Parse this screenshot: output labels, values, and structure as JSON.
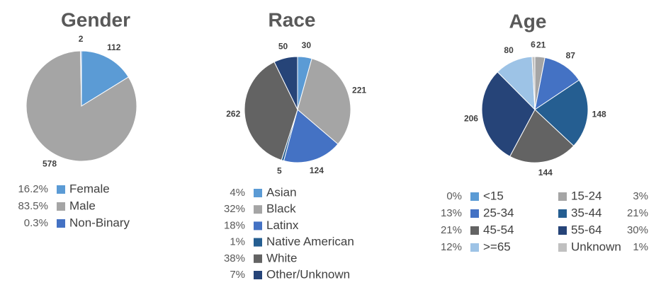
{
  "chart_data": [
    {
      "type": "pie",
      "title": "Gender",
      "categories": [
        "Female",
        "Male",
        "Non-Binary"
      ],
      "values": [
        112,
        578,
        2
      ],
      "shares": [
        "16.2%",
        "83.5%",
        "0.3%"
      ],
      "colors": [
        "#5b9bd5",
        "#a5a5a5",
        "#4472c4"
      ]
    },
    {
      "type": "pie",
      "title": "Race",
      "categories": [
        "Asian",
        "Black",
        "Latinx",
        "Native American",
        "White",
        "Other/Unknown"
      ],
      "values": [
        30,
        221,
        124,
        5,
        262,
        50
      ],
      "shares": [
        "4%",
        "32%",
        "18%",
        "1%",
        "38%",
        "7%"
      ],
      "colors": [
        "#5b9bd5",
        "#a5a5a5",
        "#4472c4",
        "#255e91",
        "#636363",
        "#264478"
      ]
    },
    {
      "type": "pie",
      "title": "Age",
      "categories": [
        "<15",
        "15-24",
        "25-34",
        "35-44",
        "45-54",
        "55-64",
        ">=65",
        "Unknown"
      ],
      "values": [
        0,
        21,
        87,
        148,
        144,
        206,
        80,
        6
      ],
      "shares": [
        "0%",
        "3%",
        "13%",
        "21%",
        "21%",
        "30%",
        "12%",
        "1%"
      ],
      "colors": [
        "#5b9bd5",
        "#a5a5a5",
        "#4472c4",
        "#255e91",
        "#636363",
        "#264478",
        "#9dc3e6",
        "#c0c0c0"
      ]
    }
  ]
}
